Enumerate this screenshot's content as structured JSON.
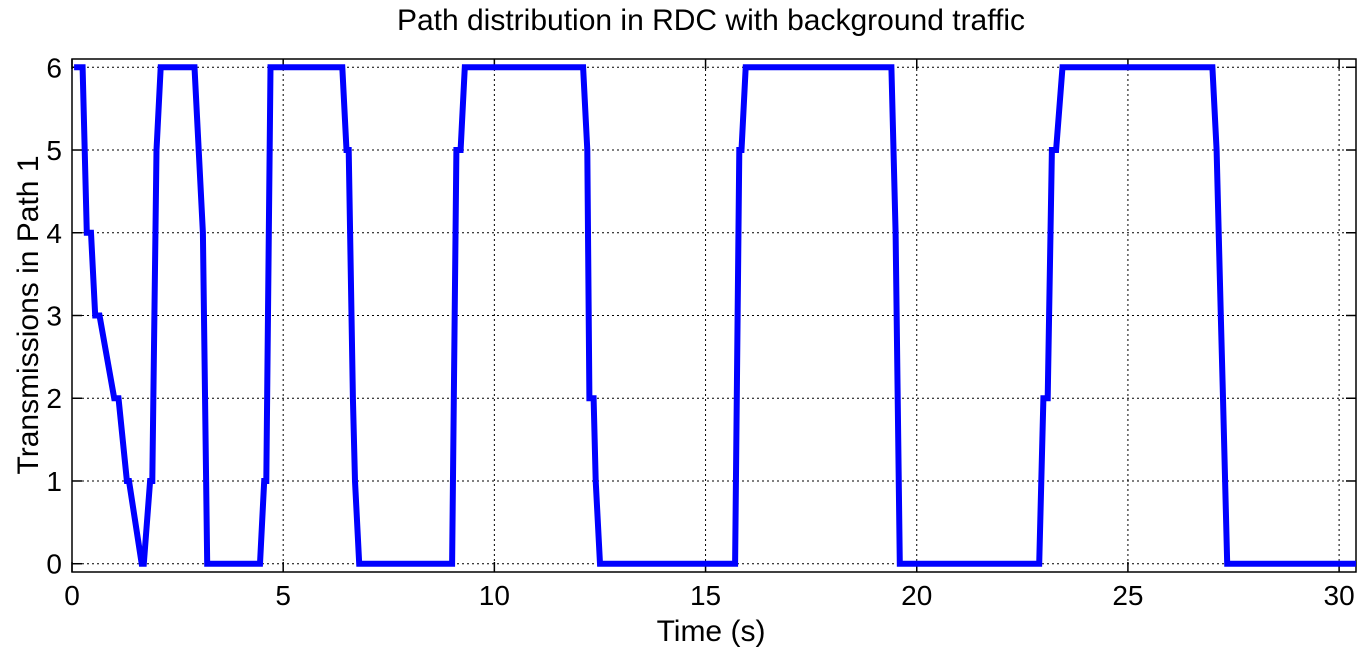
{
  "chart_data": {
    "type": "line",
    "title": "Path distribution in RDC with background traffic",
    "xlabel": "Time (s)",
    "ylabel": "Transmissions in Path 1",
    "xlim": [
      0,
      30.4
    ],
    "ylim": [
      -0.1,
      6.1
    ],
    "xticks": [
      0,
      5,
      10,
      15,
      20,
      25,
      30
    ],
    "yticks": [
      0,
      1,
      2,
      3,
      4,
      5,
      6
    ],
    "grid": true,
    "legend": "none",
    "color": "#0000ff",
    "series": [
      {
        "x": [
          0.05,
          0.25,
          0.35,
          0.45,
          0.55,
          0.65,
          1.0,
          1.1,
          1.3,
          1.35,
          1.65,
          1.7,
          1.85,
          1.9,
          2.0,
          2.1,
          2.9,
          3.0,
          3.1,
          3.2,
          4.45,
          4.55,
          4.6,
          4.7,
          6.4,
          6.5,
          6.55,
          6.65,
          6.7,
          6.8,
          9.0,
          9.1,
          9.2,
          9.3,
          12.1,
          12.2,
          12.25,
          12.35,
          12.4,
          12.5,
          15.7,
          15.8,
          15.85,
          15.95,
          19.4,
          19.5,
          19.6,
          22.9,
          23.0,
          23.1,
          23.2,
          23.3,
          23.45,
          27.0,
          27.1,
          27.2,
          27.25,
          27.35,
          30.4
        ],
        "y": [
          6,
          6,
          4,
          4,
          3,
          3,
          2,
          2,
          1,
          1,
          0,
          0,
          1,
          1,
          5,
          6,
          6,
          5,
          4,
          0,
          0,
          1,
          1,
          6,
          6,
          5,
          5,
          2,
          1,
          0,
          0,
          5,
          5,
          6,
          6,
          5,
          2,
          2,
          1,
          0,
          0,
          5,
          5,
          6,
          6,
          4,
          0,
          0,
          2,
          2,
          5,
          5,
          6,
          6,
          5,
          3,
          2,
          0,
          0
        ]
      }
    ]
  }
}
